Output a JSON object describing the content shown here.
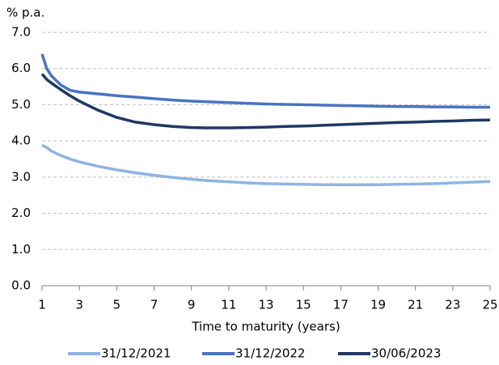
{
  "chart_data": {
    "type": "line",
    "y_unit": "% p.a.",
    "x_label": "Time to maturity (years)",
    "x": [
      1,
      1.25,
      1.5,
      2,
      2.5,
      3,
      4,
      5,
      6,
      7,
      8,
      9,
      10,
      11,
      12,
      13,
      14,
      15,
      16,
      17,
      18,
      19,
      20,
      21,
      22,
      23,
      24,
      25
    ],
    "series": [
      {
        "name": "31/12/2021",
        "color": "#8eb4e3",
        "values": [
          3.88,
          3.82,
          3.72,
          3.6,
          3.5,
          3.42,
          3.3,
          3.2,
          3.12,
          3.05,
          2.99,
          2.94,
          2.9,
          2.87,
          2.84,
          2.82,
          2.81,
          2.8,
          2.79,
          2.79,
          2.79,
          2.79,
          2.8,
          2.81,
          2.82,
          2.84,
          2.86,
          2.88
        ]
      },
      {
        "name": "31/12/2022",
        "color": "#4a74c0",
        "values": [
          6.4,
          6.0,
          5.8,
          5.55,
          5.4,
          5.35,
          5.3,
          5.25,
          5.21,
          5.17,
          5.13,
          5.1,
          5.08,
          5.06,
          5.04,
          5.02,
          5.01,
          5.0,
          4.99,
          4.98,
          4.97,
          4.96,
          4.95,
          4.95,
          4.94,
          4.94,
          4.93,
          4.93
        ]
      },
      {
        "name": "30/06/2023",
        "color": "#1f3864",
        "values": [
          5.85,
          5.7,
          5.6,
          5.42,
          5.25,
          5.1,
          4.85,
          4.65,
          4.52,
          4.45,
          4.4,
          4.37,
          4.36,
          4.36,
          4.37,
          4.38,
          4.4,
          4.41,
          4.43,
          4.45,
          4.47,
          4.49,
          4.51,
          4.52,
          4.54,
          4.55,
          4.57,
          4.58
        ]
      }
    ],
    "xlim": [
      1,
      25
    ],
    "xticks": [
      1,
      3,
      5,
      7,
      9,
      11,
      13,
      15,
      17,
      19,
      21,
      23,
      25
    ],
    "ylim": [
      0,
      7
    ],
    "yticks": [
      {
        "value": 0,
        "label": "0.0"
      },
      {
        "value": 1,
        "label": "1.0"
      },
      {
        "value": 2,
        "label": "2.0"
      },
      {
        "value": 3,
        "label": "3.0"
      },
      {
        "value": 4,
        "label": "4.0"
      },
      {
        "value": 5,
        "label": "5.0"
      },
      {
        "value": 6,
        "label": "6.0"
      },
      {
        "value": 7,
        "label": "7.0"
      }
    ],
    "grid": true,
    "legend": "bottom"
  }
}
